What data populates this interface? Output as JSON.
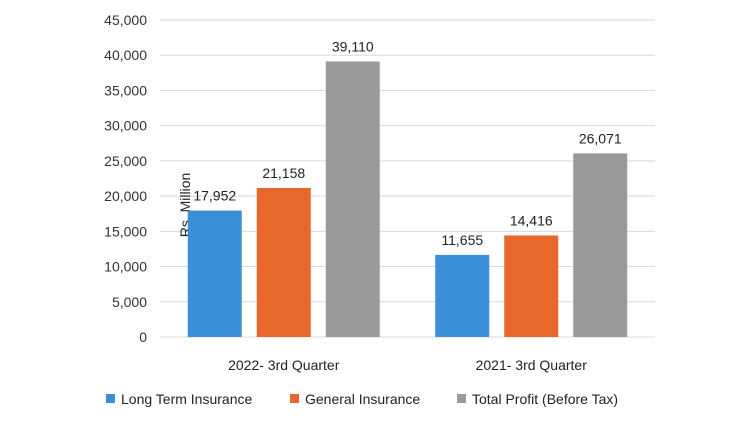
{
  "chart_data": {
    "type": "bar",
    "title": "",
    "xlabel": "",
    "ylabel": "Rs. Million",
    "ylim": [
      0,
      45000
    ],
    "ytick_step": 5000,
    "ytick_labels": [
      "0",
      "5,000",
      "10,000",
      "15,000",
      "20,000",
      "25,000",
      "30,000",
      "35,000",
      "40,000",
      "45,000"
    ],
    "grid": true,
    "legend_position": "bottom",
    "categories": [
      "2022- 3rd Quarter",
      "2021- 3rd  Quarter"
    ],
    "series": [
      {
        "name": "Long Term Insurance",
        "color": "#3a8fd8",
        "values": [
          17952,
          11655
        ],
        "labels": [
          "17,952",
          "11,655"
        ]
      },
      {
        "name": "General Insurance",
        "color": "#e8672a",
        "values": [
          21158,
          14416
        ],
        "labels": [
          "21,158",
          "14,416"
        ]
      },
      {
        "name": "Total Profit  (Before Tax)",
        "color": "#9a9a9a",
        "values": [
          39110,
          26071
        ],
        "labels": [
          "39,110",
          "26,071"
        ]
      }
    ]
  }
}
